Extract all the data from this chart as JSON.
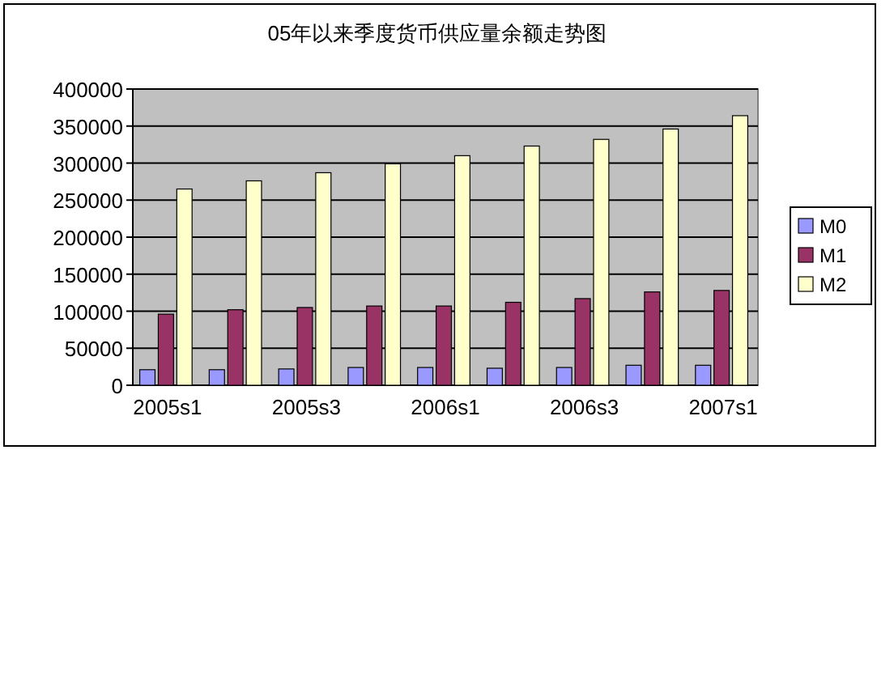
{
  "chart_data": {
    "type": "bar",
    "title": "05年以来季度货币供应量余额走势图",
    "categories": [
      "2005s1",
      null,
      "2005s3",
      null,
      "2006s1",
      null,
      "2006s3",
      null,
      "2007s1"
    ],
    "series": [
      {
        "name": "M0",
        "color": "#9999ff",
        "values": [
          21000,
          21000,
          22000,
          24000,
          24000,
          23000,
          24000,
          27000,
          27000
        ]
      },
      {
        "name": "M1",
        "color": "#993366",
        "values": [
          96000,
          102000,
          105000,
          107000,
          107000,
          112000,
          117000,
          126000,
          128000
        ]
      },
      {
        "name": "M2",
        "color": "#ffffcc",
        "values": [
          265000,
          276000,
          287000,
          299000,
          310000,
          323000,
          332000,
          346000,
          364000
        ]
      }
    ],
    "ylim": [
      0,
      400000
    ],
    "yticks": [
      0,
      50000,
      100000,
      150000,
      200000,
      250000,
      300000,
      350000,
      400000
    ],
    "grid": "y",
    "legend": "right"
  }
}
